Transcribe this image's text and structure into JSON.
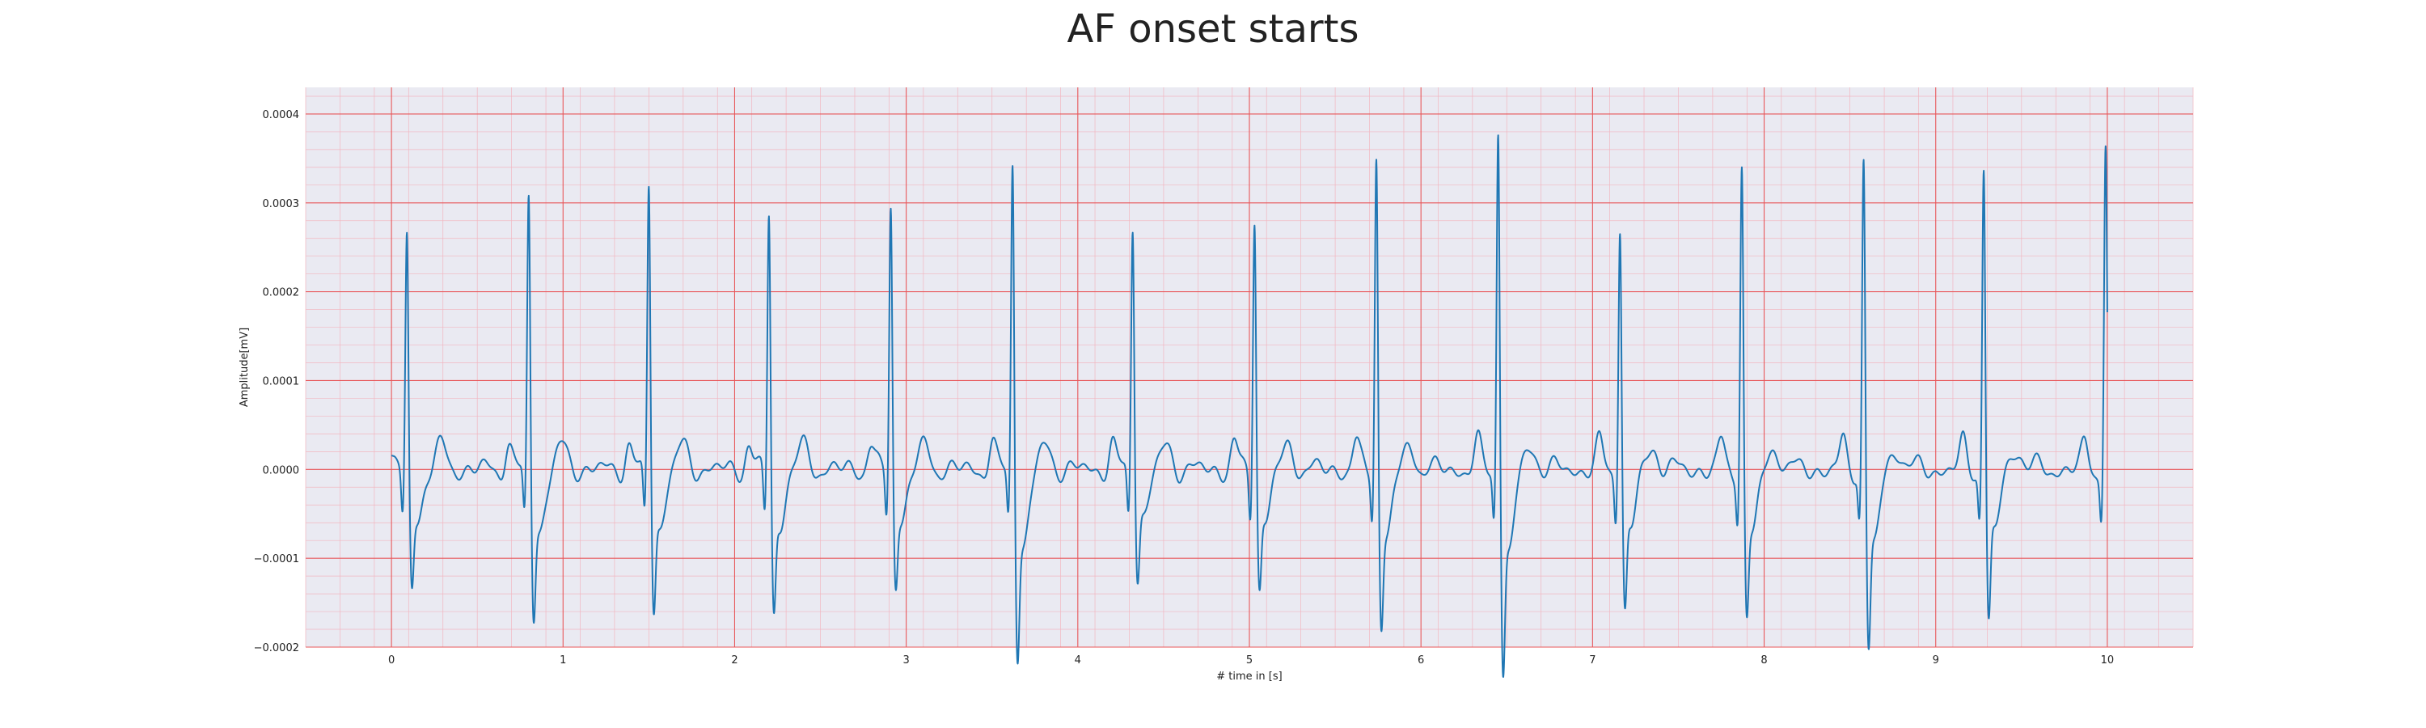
{
  "chart_data": {
    "type": "line",
    "title": "AF onset starts",
    "xlabel": "# time in [s]",
    "ylabel": "Amplitude[mV]",
    "xlim": [
      -0.5,
      10.5
    ],
    "ylim": [
      -0.0002,
      0.00043
    ],
    "xticks": [
      0,
      1,
      2,
      3,
      4,
      5,
      6,
      7,
      8,
      9,
      10
    ],
    "xtick_labels": [
      "0",
      "1",
      "2",
      "3",
      "4",
      "5",
      "6",
      "7",
      "8",
      "9",
      "10"
    ],
    "yticks": [
      -0.0002,
      -0.0001,
      0.0,
      0.0001,
      0.0002,
      0.0003,
      0.0004
    ],
    "ytick_labels": [
      "−0.0002",
      "−0.0001",
      "0.0000",
      "0.0001",
      "0.0002",
      "0.0003",
      "0.0004"
    ],
    "grid": "major and minor, red (ECG paper style)",
    "series": [
      {
        "color": "#1f77b4",
        "beats": [
          {
            "t": 0.09,
            "r": 0.000275,
            "s": -0.000103
          },
          {
            "t": 0.8,
            "r": 0.000322,
            "s": -0.000128
          },
          {
            "t": 1.5,
            "r": 0.000337,
            "s": -0.000122
          },
          {
            "t": 2.2,
            "r": 0.000306,
            "s": -0.000123
          },
          {
            "t": 2.91,
            "r": 0.000308,
            "s": -0.000101
          },
          {
            "t": 3.62,
            "r": 0.000365,
            "s": -0.00016
          },
          {
            "t": 4.32,
            "r": 0.000288,
            "s": -9.3e-05
          },
          {
            "t": 5.03,
            "r": 0.000298,
            "s": -0.000103
          },
          {
            "t": 5.74,
            "r": 0.00037,
            "s": -0.000135
          },
          {
            "t": 6.45,
            "r": 0.000406,
            "s": -0.000175
          },
          {
            "t": 7.16,
            "r": 0.00029,
            "s": -0.000123
          },
          {
            "t": 7.87,
            "r": 0.000357,
            "s": -0.00013
          },
          {
            "t": 8.58,
            "r": 0.000367,
            "s": -0.000156
          },
          {
            "t": 9.28,
            "r": 0.000357,
            "s": -0.000133
          },
          {
            "t": 9.99,
            "r": 0.000368,
            "s": -3.5e-05
          }
        ],
        "t_start": 0.0,
        "t_end": 10.0
      }
    ]
  },
  "colors": {
    "plot_background": "#eaeaf2",
    "major_grid": "#e8575a",
    "minor_grid": "#f2b6c0",
    "trace": "#1f77b4",
    "text": "#222222"
  }
}
